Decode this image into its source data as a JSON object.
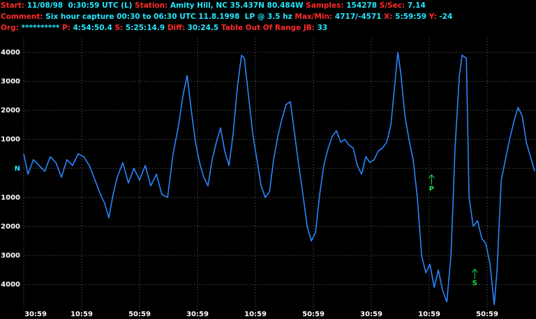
{
  "header": {
    "lines": [
      [
        {
          "label": "Start:",
          "value": "11/08/98  0:30:59 UTC (L)"
        },
        {
          "label": "Station:",
          "value": "Amity Hill, NC 35.437N 80.484W"
        },
        {
          "label": "Samples:",
          "value": "154278"
        },
        {
          "label": "S/Sec:",
          "value": "7.14"
        }
      ],
      [
        {
          "label": "Comment:",
          "value": "Six hour capture 00:30 to 06:30 UTC 11.8.1998  LP @ 3.5 hz"
        },
        {
          "label": "Max/Min:",
          "value": "4717/-4571"
        },
        {
          "label": "X:",
          "value": "5:59:59"
        },
        {
          "label": "Y:",
          "value": "-24"
        }
      ],
      [
        {
          "label": "Org:",
          "value": "**********"
        },
        {
          "label": "P:",
          "value": "4:54:50.4"
        },
        {
          "label": "S:",
          "value": "5:25:14.9"
        },
        {
          "label": "Diff:",
          "value": "30:24.5"
        },
        {
          "label": "Table Out Of Range"
        },
        {
          "label": "JB:",
          "value": "33"
        }
      ]
    ]
  },
  "chart_data": {
    "type": "line",
    "x": [
      0,
      2.9,
      6.7,
      10.6,
      14.5,
      18.3,
      22.2,
      26.0,
      29.9,
      33.7,
      37.6,
      41.4,
      45.3,
      49.2,
      53.0,
      55.9,
      58.8,
      61.7,
      64.6,
      68.4,
      72.3,
      76.1,
      80.0,
      83.9,
      87.7,
      91.6,
      95.4,
      99.3,
      103.1,
      107.0,
      109.9,
      112.8,
      115.7,
      118.6,
      121.4,
      124.3,
      127.2,
      130.1,
      133.0,
      135.9,
      138.8,
      141.7,
      144.6,
      147.5,
      150.4,
      152.3,
      155.2,
      158.1,
      161.0,
      163.9,
      166.8,
      169.7,
      172.5,
      175.4,
      178.3,
      181.2,
      184.1,
      187.0,
      189.9,
      192.8,
      195.7,
      198.6,
      201.5,
      204.3,
      207.2,
      210.2,
      213.0,
      215.9,
      218.8,
      221.7,
      224.6,
      227.5,
      230.4,
      233.3,
      236.2,
      239.1,
      241.9,
      244.8,
      247.7,
      250.6,
      253.5,
      256.4,
      258.3,
      260.3,
      263.2,
      266.0,
      268.9,
      271.8,
      274.7,
      277.6,
      280.5,
      283.4,
      286.3,
      289.2,
      292.1,
      295.0,
      297.9,
      300.8,
      302.7,
      305.6,
      307.5,
      310.4,
      313.3,
      316.2,
      319.1,
      322.0,
      324.9,
      326.8,
      329.7,
      332.6,
      335.5,
      338.4,
      341.3,
      344.2,
      347.0,
      349.9,
      352.8
    ],
    "series": [
      {
        "color": "#2a86ff",
        "values": [
          500,
          -200,
          300,
          100,
          -100,
          400,
          200,
          -300,
          300,
          100,
          500,
          400,
          100,
          -400,
          -900,
          -1200,
          -1700,
          -900,
          -300,
          200,
          -500,
          0,
          -400,
          100,
          -600,
          -200,
          -900,
          -1000,
          500,
          1500,
          2500,
          3200,
          2000,
          900,
          200,
          -300,
          -600,
          300,
          900,
          1400,
          600,
          100,
          1200,
          2800,
          3900,
          3800,
          2500,
          1200,
          300,
          -600,
          -1000,
          -800,
          300,
          1100,
          1700,
          2200,
          2300,
          1200,
          100,
          -900,
          -2000,
          -2500,
          -2200,
          -900,
          100,
          700,
          1100,
          1300,
          900,
          1000,
          800,
          700,
          100,
          -200,
          400,
          200,
          300,
          600,
          700,
          900,
          1500,
          3000,
          4000,
          3300,
          1800,
          1000,
          300,
          -1000,
          -3000,
          -3600,
          -3300,
          -4100,
          -3500,
          -4200,
          -4600,
          -3000,
          800,
          3200,
          3900,
          3800,
          -1000,
          -2000,
          -1800,
          -2400,
          -2600,
          -3300,
          -4700,
          -3500,
          -400,
          300,
          1000,
          1600,
          2100,
          1800,
          900,
          400,
          -100
        ]
      }
    ],
    "xlim": [
      0,
      353.7
    ],
    "xticks": [
      {
        "value": 0,
        "label": "30:59"
      },
      {
        "value": 40,
        "label": "10:59"
      },
      {
        "value": 80,
        "label": "50:59"
      },
      {
        "value": 120,
        "label": "30:59"
      },
      {
        "value": 160,
        "label": "10:59"
      },
      {
        "value": 200,
        "label": "50:59"
      },
      {
        "value": 240,
        "label": "30:59"
      },
      {
        "value": 280,
        "label": "10:59"
      },
      {
        "value": 320,
        "label": "50:59"
      }
    ],
    "ylim": [
      -4900,
      4480
    ],
    "yticks": [
      4000,
      3000,
      2000,
      1000,
      {
        "value": 0,
        "label": "N"
      },
      {
        "value": -1000,
        "label": "1000"
      },
      {
        "value": -2000,
        "label": "2000"
      },
      {
        "value": -3000,
        "label": "3000"
      },
      {
        "value": -4000,
        "label": "4000"
      }
    ],
    "grid": true,
    "annotations": [
      {
        "text": "P",
        "x": 281.6,
        "y": -700,
        "color": "#22dd55"
      },
      {
        "text": "S",
        "x": 311.4,
        "y": -3950,
        "color": "#22dd55"
      }
    ]
  }
}
